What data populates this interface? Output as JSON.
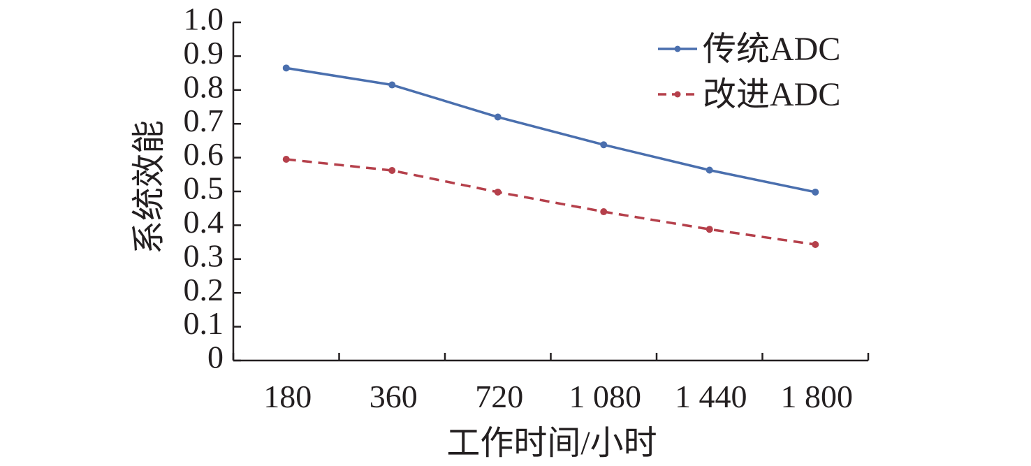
{
  "chart_data": {
    "type": "line",
    "title": "",
    "xlabel": "工作时间/小时",
    "ylabel": "系统效能",
    "categories": [
      "180",
      "360",
      "720",
      "1 080",
      "1 440",
      "1 800"
    ],
    "ylim": [
      0,
      1.0
    ],
    "yticks": [
      "0",
      "0.1",
      "0.2",
      "0.3",
      "0.4",
      "0.5",
      "0.6",
      "0.7",
      "0.8",
      "0.9",
      "1.0"
    ],
    "grid": false,
    "legend_position": "top-right",
    "series": [
      {
        "name": "传统ADC",
        "values": [
          0.865,
          0.815,
          0.72,
          0.638,
          0.563,
          0.498
        ],
        "color": "#4a6fae",
        "style": "solid"
      },
      {
        "name": "改进ADC",
        "values": [
          0.595,
          0.562,
          0.498,
          0.44,
          0.388,
          0.343
        ],
        "color": "#b5404b",
        "style": "dashed"
      }
    ]
  }
}
